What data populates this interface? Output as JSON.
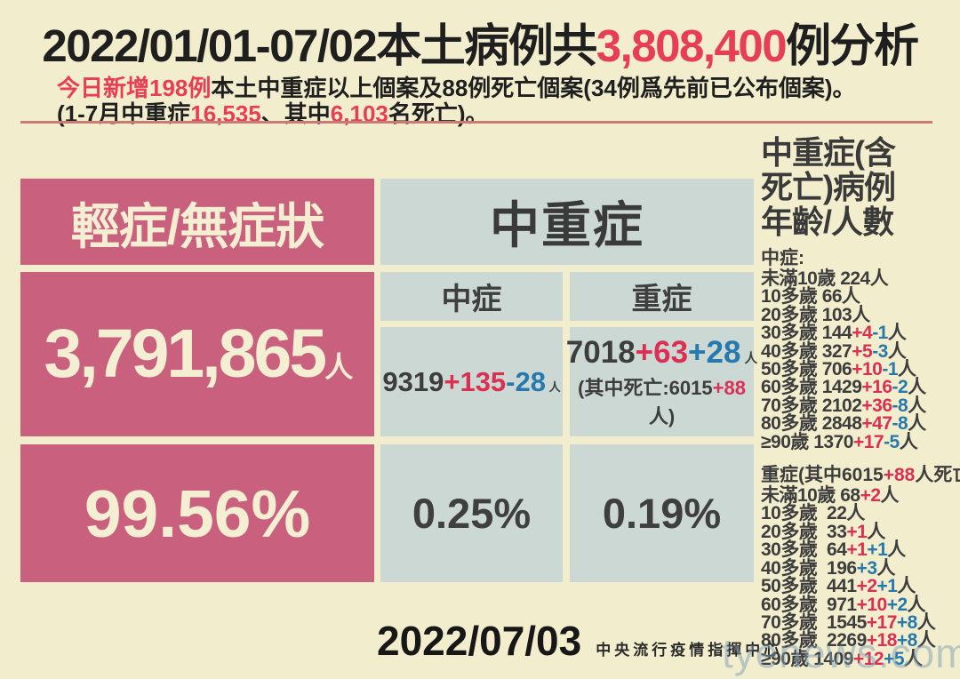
{
  "colors": {
    "background": "#f2eecd",
    "pink_box": "#c8607e",
    "grey_box": "#ccd8d3",
    "accent_red": "#d93054",
    "accent_blue": "#2779ad",
    "title_red": "#e73e56",
    "cream_text": "#f4eed3",
    "separator": "#c97b73"
  },
  "title": {
    "parts": [
      {
        "t": "2022/01/01-07/02本土病例共",
        "c": "ink"
      },
      {
        "t": "3,808,400",
        "c": "tred"
      },
      {
        "t": "例分析",
        "c": "ink"
      }
    ]
  },
  "subtitle1": {
    "parts": [
      {
        "t": "今日新增198例",
        "c": "tred"
      },
      {
        "t": "本土中重症以上個案及88例死亡個案(34例爲先前已公布個案)。",
        "c": "ink"
      }
    ]
  },
  "subtitle2": {
    "parts": [
      {
        "t": "(1-7月中重症",
        "c": "ink"
      },
      {
        "t": "16,535",
        "c": "tred"
      },
      {
        "t": "、其中",
        "c": "ink"
      },
      {
        "t": "6,103",
        "c": "tred"
      },
      {
        "t": "名死亡)。",
        "c": "ink"
      }
    ]
  },
  "table": {
    "mild_header": "輕症/無症狀",
    "msev_header": "中重症",
    "mild_count": {
      "parts": [
        {
          "t": "3,791,865",
          "c": "cream"
        },
        {
          "t": "人",
          "c": "cream sm"
        }
      ]
    },
    "mid_label": "中症",
    "sev_label": "重症",
    "mid_count": {
      "parts": [
        {
          "t": "9319",
          "c": "dark"
        },
        {
          "t": "+135",
          "c": "red"
        },
        {
          "t": "-28",
          "c": "blue"
        },
        {
          "t": " 人",
          "c": "dark sm"
        }
      ]
    },
    "sev_count_line1": {
      "parts": [
        {
          "t": "7018",
          "c": "dark"
        },
        {
          "t": "+63",
          "c": "red"
        },
        {
          "t": "+28",
          "c": "blue"
        },
        {
          "t": " 人",
          "c": "dark sm"
        }
      ]
    },
    "sev_count_line2": {
      "parts": [
        {
          "t": "(其中死亡:6015",
          "c": "dark"
        },
        {
          "t": "+88",
          "c": "red"
        },
        {
          "t": "人)",
          "c": "dark"
        }
      ]
    },
    "mild_pct": "99.56%",
    "mid_pct": "0.25%",
    "sev_pct": "0.19%"
  },
  "sidebar": {
    "title_lines": [
      "中重症(含",
      "死亡)病例",
      "年齡/人數"
    ],
    "moderate_label": "中症:",
    "moderate_rows": [
      [
        {
          "t": "未滿10歲 224人",
          "c": "dark"
        }
      ],
      [
        {
          "t": "10多歲 66人",
          "c": "dark"
        }
      ],
      [
        {
          "t": "20多歲 103人",
          "c": "dark"
        }
      ],
      [
        {
          "t": "30多歲 144",
          "c": "dark"
        },
        {
          "t": "+4",
          "c": "red"
        },
        {
          "t": "-1",
          "c": "blue"
        },
        {
          "t": "人",
          "c": "dark"
        }
      ],
      [
        {
          "t": "40多歲 327",
          "c": "dark"
        },
        {
          "t": "+5",
          "c": "red"
        },
        {
          "t": "-3",
          "c": "blue"
        },
        {
          "t": "人",
          "c": "dark"
        }
      ],
      [
        {
          "t": "50多歲 706",
          "c": "dark"
        },
        {
          "t": "+10",
          "c": "red"
        },
        {
          "t": "-1",
          "c": "blue"
        },
        {
          "t": "人",
          "c": "dark"
        }
      ],
      [
        {
          "t": "60多歲 1429",
          "c": "dark"
        },
        {
          "t": "+16",
          "c": "red"
        },
        {
          "t": "-2",
          "c": "blue"
        },
        {
          "t": "人",
          "c": "dark"
        }
      ],
      [
        {
          "t": "70多歲 2102",
          "c": "dark"
        },
        {
          "t": "+36",
          "c": "red"
        },
        {
          "t": "-8",
          "c": "blue"
        },
        {
          "t": "人",
          "c": "dark"
        }
      ],
      [
        {
          "t": "80多歲 2848",
          "c": "dark"
        },
        {
          "t": "+47",
          "c": "red"
        },
        {
          "t": "-8",
          "c": "blue"
        },
        {
          "t": "人",
          "c": "dark"
        }
      ],
      [
        {
          "t": "≥90歲 1370",
          "c": "dark"
        },
        {
          "t": "+17",
          "c": "red"
        },
        {
          "t": "-5",
          "c": "blue"
        },
        {
          "t": "人",
          "c": "dark"
        }
      ]
    ],
    "severe_header": {
      "parts": [
        {
          "t": "重症(其中6015",
          "c": "dark"
        },
        {
          "t": "+88",
          "c": "red"
        },
        {
          "t": "人死亡):",
          "c": "dark"
        }
      ]
    },
    "severe_rows": [
      [
        {
          "t": "未滿10歲 68",
          "c": "dark"
        },
        {
          "t": "+2",
          "c": "red"
        },
        {
          "t": "人",
          "c": "dark"
        }
      ],
      [
        {
          "t": "10多歲  22人",
          "c": "dark"
        }
      ],
      [
        {
          "t": "20多歲  33",
          "c": "dark"
        },
        {
          "t": "+1",
          "c": "red"
        },
        {
          "t": "人",
          "c": "dark"
        }
      ],
      [
        {
          "t": "30多歲  64",
          "c": "dark"
        },
        {
          "t": "+1",
          "c": "red"
        },
        {
          "t": "+1",
          "c": "blue"
        },
        {
          "t": "人",
          "c": "dark"
        }
      ],
      [
        {
          "t": "40多歲  196",
          "c": "dark"
        },
        {
          "t": "+3",
          "c": "blue"
        },
        {
          "t": "人",
          "c": "dark"
        }
      ],
      [
        {
          "t": "50多歲  441",
          "c": "dark"
        },
        {
          "t": "+2",
          "c": "red"
        },
        {
          "t": "+1",
          "c": "blue"
        },
        {
          "t": "人",
          "c": "dark"
        }
      ],
      [
        {
          "t": "60多歲  971",
          "c": "dark"
        },
        {
          "t": "+10",
          "c": "red"
        },
        {
          "t": "+2",
          "c": "blue"
        },
        {
          "t": "人",
          "c": "dark"
        }
      ],
      [
        {
          "t": "70多歲  1545",
          "c": "dark"
        },
        {
          "t": "+17",
          "c": "red"
        },
        {
          "t": "+8",
          "c": "blue"
        },
        {
          "t": "人",
          "c": "dark"
        }
      ],
      [
        {
          "t": "80多歲  2269",
          "c": "dark"
        },
        {
          "t": "+18",
          "c": "red"
        },
        {
          "t": "+8",
          "c": "blue"
        },
        {
          "t": "人",
          "c": "dark"
        }
      ],
      [
        {
          "t": "≥90歲 1409",
          "c": "dark"
        },
        {
          "t": "+12",
          "c": "red"
        },
        {
          "t": "+5",
          "c": "blue"
        },
        {
          "t": "人",
          "c": "dark"
        }
      ]
    ]
  },
  "footer": {
    "date": "2022/07/03",
    "agency": "中央流行疫情指揮中心"
  },
  "watermark": "tyenews.com",
  "chart_data": {
    "type": "table",
    "title": "2022/01/01-07/02本土病例共3,808,400例分析",
    "total_cases": 3808400,
    "new_today_msev": 198,
    "new_today_deaths": 88,
    "jan_jul_msev_total": 16535,
    "jan_jul_deaths_total": 6103,
    "categories": [
      "輕症/無症狀",
      "中症",
      "重症"
    ],
    "counts": [
      3791865,
      9319,
      7018
    ],
    "percentages": [
      99.56,
      0.25,
      0.19
    ],
    "moderate_delta": {
      "added": 135,
      "removed": 28
    },
    "severe_delta": {
      "added_red": 63,
      "added_blue": 28
    },
    "severe_deaths": {
      "base": 6015,
      "added": 88
    },
    "age_groups": [
      "未滿10歲",
      "10多歲",
      "20多歲",
      "30多歲",
      "40多歲",
      "50多歲",
      "60多歲",
      "70多歲",
      "80多歲",
      "≥90歲"
    ],
    "series": [
      {
        "name": "中症",
        "values": [
          224,
          66,
          103,
          144,
          327,
          706,
          1429,
          2102,
          2848,
          1370
        ],
        "delta_red": [
          0,
          0,
          0,
          4,
          5,
          10,
          16,
          36,
          47,
          17
        ],
        "delta_blue": [
          0,
          0,
          0,
          -1,
          -3,
          -1,
          -2,
          -8,
          -8,
          -5
        ]
      },
      {
        "name": "重症",
        "values": [
          68,
          22,
          33,
          64,
          196,
          441,
          971,
          1545,
          2269,
          1409
        ],
        "delta_red": [
          2,
          0,
          1,
          1,
          0,
          2,
          10,
          17,
          18,
          12
        ],
        "delta_blue": [
          0,
          0,
          0,
          1,
          3,
          1,
          2,
          8,
          8,
          5
        ]
      }
    ],
    "report_date": "2022/07/03",
    "source": "中央流行疫情指揮中心"
  }
}
